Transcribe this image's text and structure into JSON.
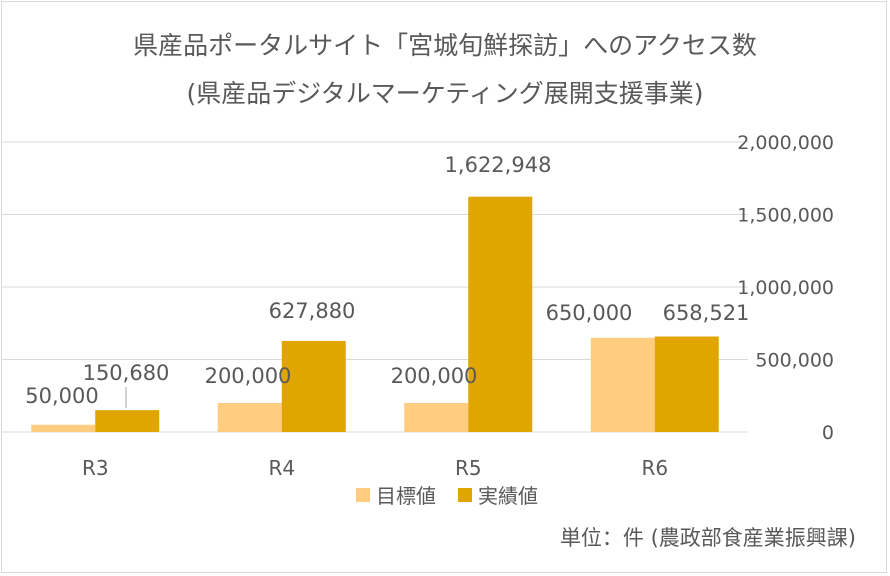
{
  "chart_data": {
    "type": "bar",
    "title": "県産品ポータルサイト「宮城旬鮮探訪」へのアクセス数",
    "subtitle": "(県産品デジタルマーケティング展開支援事業)",
    "categories": [
      "R3",
      "R4",
      "R5",
      "R6"
    ],
    "series": [
      {
        "name": "目標値",
        "values": [
          50000,
          200000,
          200000,
          650000
        ],
        "labels": [
          "50,000",
          "200,000",
          "200,000",
          "650,000"
        ],
        "color": "#FFCC80"
      },
      {
        "name": "実績値",
        "values": [
          150680,
          627880,
          1622948,
          658521
        ],
        "labels": [
          "150,680",
          "627,880",
          "1,622,948",
          "658,521"
        ],
        "color": "#E0A500"
      }
    ],
    "ylim": [
      0,
      2000000
    ],
    "yticks": [
      "0",
      "500,000",
      "1,000,000",
      "1,500,000",
      "2,000,000"
    ],
    "ytick_values": [
      0,
      500000,
      1000000,
      1500000,
      2000000
    ],
    "y_axis_side": "right",
    "grid": true,
    "legend_position": "bottom",
    "footnote": "単位：件 (農政部食産業振興課)"
  }
}
